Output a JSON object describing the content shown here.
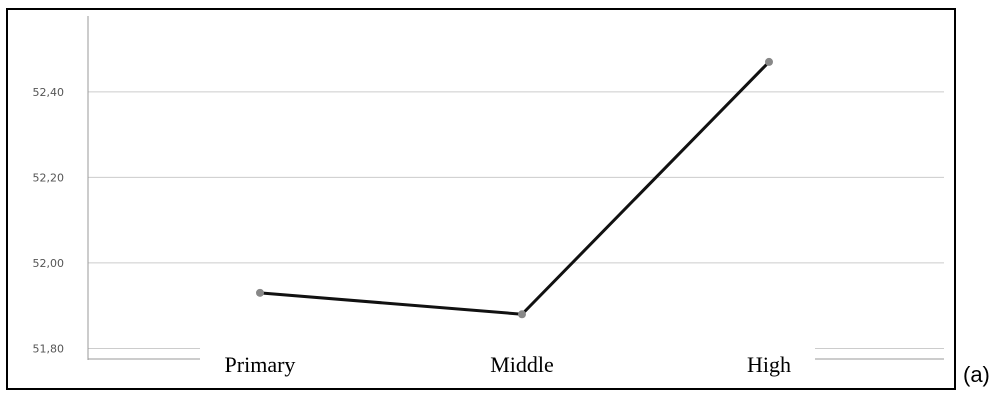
{
  "panel_label": "(a)",
  "chart_data": {
    "type": "line",
    "categories": [
      "Primary",
      "Middle",
      "High"
    ],
    "values": [
      51.93,
      51.88,
      52.47
    ],
    "ylim": [
      51.78,
      52.54
    ],
    "yticks": [
      51.8,
      52.0,
      52.2,
      52.4
    ],
    "ytick_labels": [
      "51,80",
      "52,00",
      "52,20",
      "52,40"
    ],
    "grid": "horizontal",
    "line_color": "#111111",
    "marker_color": "#888888",
    "grid_color": "#cccccc"
  }
}
